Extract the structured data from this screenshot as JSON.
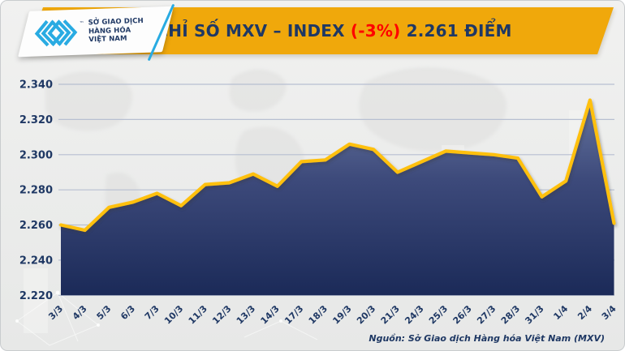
{
  "header": {
    "logo": {
      "lines": [
        "SỞ GIAO DỊCH",
        "HÀNG HÓA",
        "VIỆT NAM"
      ],
      "trademark": "™"
    },
    "title_prefix": "CHỈ SỐ MXV – INDEX ",
    "title_change": "(-3%)",
    "title_suffix": " 2.261 ĐIỂM"
  },
  "chart_data": {
    "type": "area",
    "title": "CHỈ SỐ MXV – INDEX (-3%) 2.261 ĐIỂM",
    "x_labels": [
      "3/3",
      "4/3",
      "5/3",
      "6/3",
      "7/3",
      "10/3",
      "11/3",
      "12/3",
      "13/3",
      "14/3",
      "17/3",
      "18/3",
      "19/3",
      "20/3",
      "21/3",
      "24/3",
      "25/3",
      "26/3",
      "27/3",
      "28/3",
      "31/3",
      "1/4",
      "2/4",
      "3/4"
    ],
    "series": [
      {
        "name": "MXV-Index",
        "values": [
          2260,
          2257,
          2270,
          2273,
          2278,
          2271,
          2283,
          2284,
          2289,
          2282,
          2296,
          2297,
          2306,
          2303,
          2290,
          2296,
          2302,
          2301,
          2300,
          2298,
          2276,
          2285,
          2331,
          2261
        ]
      }
    ],
    "ylim": [
      2220,
      2340
    ],
    "ytick_values": [
      2340,
      2320,
      2300,
      2280,
      2260,
      2240,
      2220
    ],
    "ytick_labels": [
      "2.340",
      "2.320",
      "2.300",
      "2.280",
      "2.260",
      "2.240",
      "2.220"
    ],
    "xlabel": "",
    "ylabel": "",
    "grid": "horizontal",
    "legend": "none",
    "x_label_rotation": -45
  },
  "source": "Nguồn: Sở Giao dịch Hàng hóa Việt Nam (MXV)",
  "colors": {
    "banner_gold": "#F0A80B",
    "title_navy": "#1F3864",
    "change_red": "#FF0000",
    "line_yellow": "#FFC010",
    "area_top": "#6F7EA6",
    "area_mid": "#3D4A7B",
    "area_bottom": "#1B2A58",
    "axis_text": "#1F3864",
    "gridline": "#B7BFD1",
    "logo_blue": "#29ABE2",
    "card_background": "#ECEDEC"
  }
}
